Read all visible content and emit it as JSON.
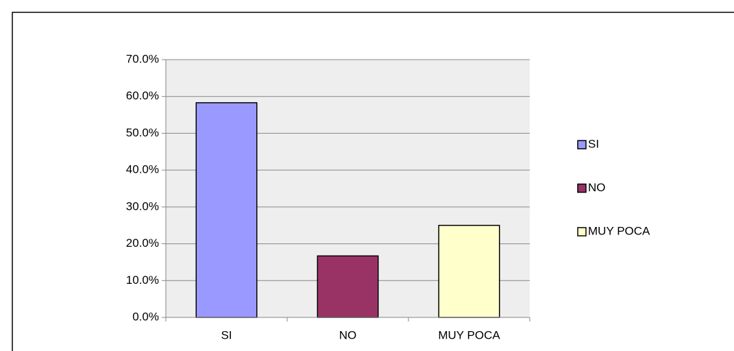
{
  "chart_data": {
    "type": "bar",
    "categories": [
      "SI",
      "NO",
      "MUY POCA"
    ],
    "values": [
      58.3,
      16.7,
      25.0
    ],
    "colors": [
      "#9999ff",
      "#993366",
      "#ffffcc"
    ],
    "ylim": [
      0,
      70
    ],
    "yticks": [
      {
        "value": 0,
        "label": "0.0%"
      },
      {
        "value": 10,
        "label": "10.0%"
      },
      {
        "value": 20,
        "label": "20.0%"
      },
      {
        "value": 30,
        "label": "30.0%"
      },
      {
        "value": 40,
        "label": "40.0%"
      },
      {
        "value": 50,
        "label": "50.0%"
      },
      {
        "value": 60,
        "label": "60.0%"
      },
      {
        "value": 70,
        "label": "70.0%"
      }
    ],
    "grid": true,
    "legend": "right"
  }
}
